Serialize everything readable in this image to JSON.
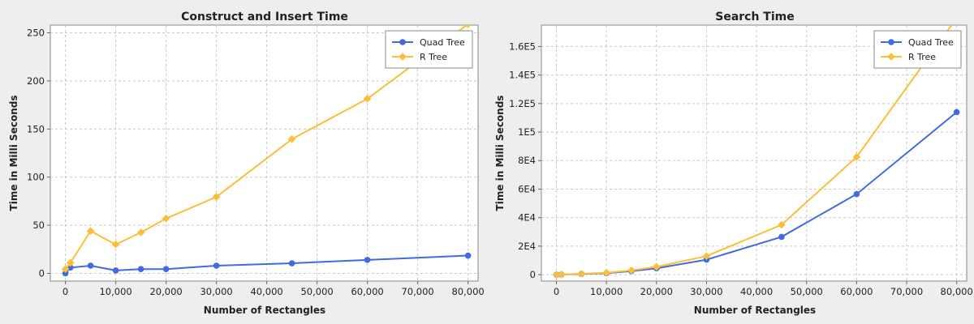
{
  "chart_data": [
    {
      "type": "line",
      "title": "Construct and Insert Time",
      "xlabel": "Number of Rectangles",
      "ylabel": "Time in Milli Seconds",
      "xlim": [
        -3000,
        82000
      ],
      "ylim": [
        -8,
        258
      ],
      "xticks": [
        0,
        10000,
        20000,
        30000,
        40000,
        50000,
        60000,
        70000,
        80000
      ],
      "xtick_labels": [
        "0",
        "10,000",
        "20,000",
        "30,000",
        "40,000",
        "50,000",
        "60,000",
        "70,000",
        "80,000"
      ],
      "yticks": [
        0,
        50,
        100,
        150,
        200,
        250
      ],
      "ytick_labels": [
        "0",
        "50",
        "100",
        "150",
        "200",
        "250"
      ],
      "grid": true,
      "legend_position": "top-right",
      "series": [
        {
          "name": "Quad Tree",
          "color": "#4169e1",
          "marker": "circle",
          "x": [
            0,
            1000,
            5000,
            10000,
            15000,
            20000,
            30000,
            45000,
            60000,
            80000
          ],
          "y": [
            0,
            6,
            8,
            3,
            4.5,
            4.5,
            8,
            10.5,
            14,
            18.5
          ]
        },
        {
          "name": "R Tree",
          "color": "#fbbe3a",
          "marker": "diamond",
          "x": [
            0,
            1000,
            5000,
            10000,
            15000,
            20000,
            30000,
            45000,
            60000,
            80000
          ],
          "y": [
            4.5,
            11,
            44,
            30,
            42.5,
            57,
            79.5,
            139.5,
            181.5,
            259
          ]
        }
      ]
    },
    {
      "type": "line",
      "title": "Search Time",
      "xlabel": "Number of Rectangles",
      "ylabel": "Time in Milli Seconds",
      "xlim": [
        -3000,
        82000
      ],
      "ylim": [
        -4500,
        175000
      ],
      "xticks": [
        0,
        10000,
        20000,
        30000,
        40000,
        50000,
        60000,
        70000,
        80000
      ],
      "xtick_labels": [
        "0",
        "10,000",
        "20,000",
        "30,000",
        "40,000",
        "50,000",
        "60,000",
        "70,000",
        "80,000"
      ],
      "yticks": [
        0,
        20000,
        40000,
        60000,
        80000,
        100000,
        120000,
        140000,
        160000
      ],
      "ytick_labels": [
        "0",
        "2E4",
        "4E4",
        "6E4",
        "8E4",
        "1E5",
        "1.2E5",
        "1.4E5",
        "1.6E5"
      ],
      "grid": true,
      "legend_position": "top-right",
      "series": [
        {
          "name": "Quad Tree",
          "color": "#4169e1",
          "marker": "circle",
          "x": [
            0,
            1000,
            5000,
            10000,
            15000,
            20000,
            30000,
            45000,
            60000,
            80000
          ],
          "y": [
            0,
            100,
            500,
            1000,
            2500,
            4500,
            10500,
            26500,
            56500,
            114000
          ]
        },
        {
          "name": "R Tree",
          "color": "#fbbe3a",
          "marker": "diamond",
          "x": [
            0,
            1000,
            5000,
            10000,
            15000,
            20000,
            30000,
            45000,
            60000,
            80000
          ],
          "y": [
            0,
            150,
            600,
            1300,
            3000,
            5500,
            13000,
            35000,
            82500,
            180000
          ]
        }
      ]
    }
  ]
}
